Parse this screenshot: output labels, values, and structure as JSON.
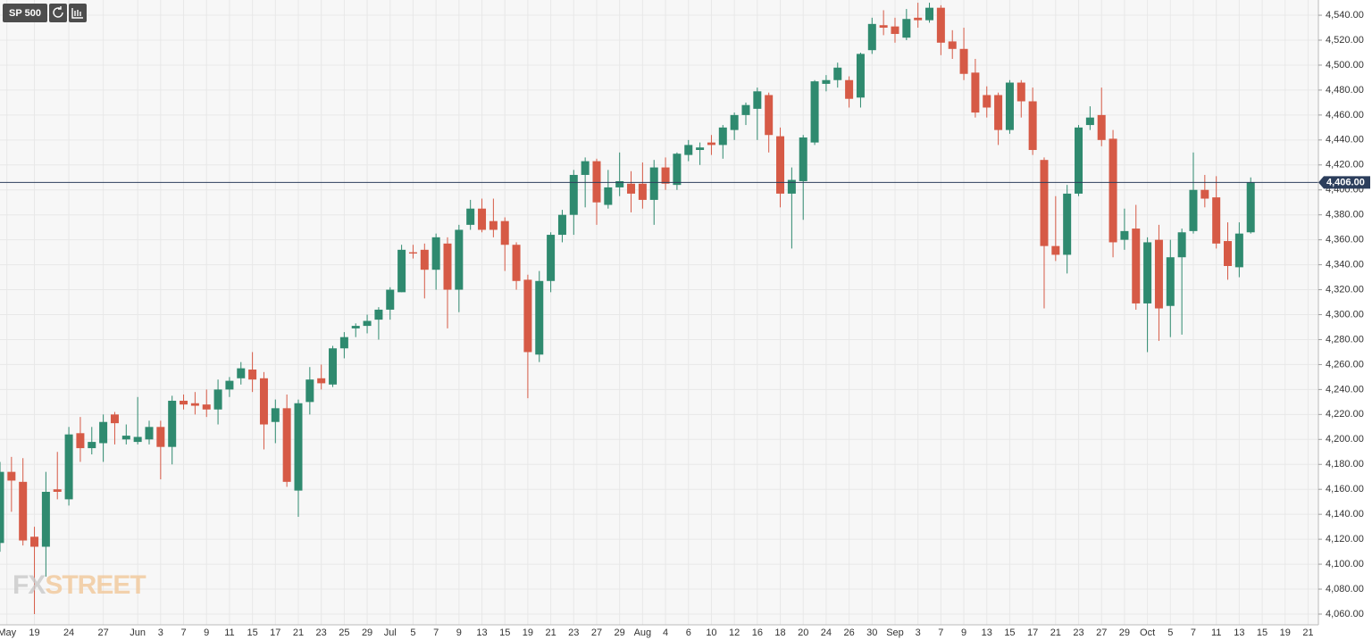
{
  "chart_data": {
    "type": "candlestick",
    "title": "SP 500",
    "watermark": [
      "FX",
      "STREET"
    ],
    "up_color": "#2f8a6f",
    "down_color": "#d65a46",
    "grid": true,
    "x": [
      0,
      1,
      2,
      3,
      4,
      5,
      6,
      7,
      8,
      9,
      10,
      11,
      12,
      13,
      14,
      15,
      16,
      17,
      18,
      19,
      20,
      21,
      22,
      23,
      24,
      25,
      26,
      27,
      28,
      29,
      30,
      31,
      32,
      33,
      34,
      35,
      36,
      37,
      38,
      39,
      40,
      41,
      42,
      43,
      44,
      45,
      46,
      47,
      48,
      49,
      50,
      51,
      52,
      53,
      54,
      55,
      56,
      57,
      58,
      59,
      60,
      61,
      62,
      63,
      64,
      65,
      66,
      67,
      68,
      69,
      70,
      71,
      72,
      73,
      74,
      75,
      76,
      77,
      78,
      79,
      80,
      81,
      82,
      83,
      84,
      85,
      86,
      87,
      88,
      89,
      90,
      91,
      92,
      93,
      94,
      95,
      96,
      97,
      98,
      99,
      100,
      101,
      102,
      103,
      104,
      105,
      106,
      107,
      108,
      109
    ],
    "open": [
      4117,
      4174,
      4166,
      4122,
      4114,
      4160,
      4152,
      4205,
      4193,
      4197,
      4220,
      4200,
      4198,
      4200,
      4210,
      4194,
      4231,
      4229,
      4228,
      4224,
      4240,
      4249,
      4256,
      4249,
      4214,
      4225,
      4159,
      4230,
      4249,
      4244,
      4273,
      4289,
      4291,
      4296,
      4304,
      4318,
      4350,
      4352,
      4336,
      4357,
      4320,
      4372,
      4385,
      4375,
      4375,
      4356,
      4328,
      4268,
      4327,
      4364,
      4380,
      4412,
      4423,
      4388,
      4402,
      4405,
      4405,
      4392,
      4418,
      4404,
      4428,
      4432,
      4438,
      4436,
      4448,
      4460,
      4465,
      4476,
      4443,
      4397,
      4407,
      4438,
      4485,
      4488,
      4488,
      4474,
      4512,
      4532,
      4531,
      4522,
      4538,
      4536,
      4546,
      4519,
      4513,
      4494,
      4476,
      4476,
      4448,
      4486,
      4471,
      4424,
      4355,
      4348,
      4397,
      4452,
      4460,
      4441,
      4360,
      4369,
      4309,
      4360,
      4307,
      4346,
      4367,
      4400,
      4394,
      4359,
      4338,
      4366
    ],
    "high": [
      4182,
      4186,
      4185,
      4130,
      4174,
      4190,
      4210,
      4218,
      4210,
      4220,
      4222,
      4212,
      4234,
      4215,
      4215,
      4235,
      4236,
      4238,
      4240,
      4248,
      4250,
      4262,
      4270,
      4254,
      4232,
      4236,
      4232,
      4258,
      4260,
      4275,
      4286,
      4293,
      4300,
      4306,
      4322,
      4356,
      4356,
      4357,
      4365,
      4362,
      4372,
      4392,
      4393,
      4393,
      4378,
      4358,
      4332,
      4335,
      4366,
      4384,
      4416,
      4426,
      4425,
      4416,
      4430,
      4415,
      4422,
      4424,
      4426,
      4430,
      4440,
      4438,
      4444,
      4452,
      4462,
      4470,
      4482,
      4478,
      4450,
      4418,
      4444,
      4488,
      4492,
      4502,
      4491,
      4510,
      4538,
      4544,
      4538,
      4545,
      4550,
      4550,
      4548,
      4528,
      4530,
      4505,
      4483,
      4478,
      4488,
      4488,
      4482,
      4426,
      4395,
      4404,
      4452,
      4467,
      4482,
      4448,
      4385,
      4388,
      4362,
      4372,
      4360,
      4369,
      4430,
      4412,
      4411,
      4374,
      4374,
      4410
    ],
    "low": [
      4110,
      4142,
      4115,
      4060,
      4090,
      4152,
      4147,
      4182,
      4188,
      4182,
      4196,
      4196,
      4196,
      4196,
      4168,
      4180,
      4224,
      4220,
      4218,
      4212,
      4234,
      4244,
      4238,
      4192,
      4197,
      4162,
      4138,
      4220,
      4240,
      4242,
      4265,
      4282,
      4285,
      4280,
      4296,
      4318,
      4345,
      4313,
      4320,
      4289,
      4302,
      4368,
      4366,
      4362,
      4335,
      4320,
      4233,
      4262,
      4318,
      4358,
      4364,
      4386,
      4372,
      4385,
      4395,
      4382,
      4385,
      4372,
      4400,
      4400,
      4423,
      4420,
      4428,
      4425,
      4440,
      4452,
      4440,
      4430,
      4386,
      4353,
      4376,
      4436,
      4479,
      4482,
      4466,
      4466,
      4509,
      4524,
      4518,
      4520,
      4530,
      4534,
      4508,
      4505,
      4488,
      4458,
      4458,
      4436,
      4445,
      4458,
      4428,
      4305,
      4343,
      4333,
      4395,
      4448,
      4435,
      4346,
      4352,
      4304,
      4270,
      4279,
      4282,
      4284,
      4365,
      4386,
      4353,
      4328,
      4330,
      4365
    ],
    "close": [
      4174,
      4167,
      4119,
      4114,
      4158,
      4158,
      4204,
      4193,
      4198,
      4214,
      4213,
      4203,
      4202,
      4210,
      4194,
      4231,
      4228,
      4227,
      4224,
      4240,
      4247,
      4257,
      4248,
      4212,
      4225,
      4166,
      4229,
      4248,
      4245,
      4273,
      4282,
      4291,
      4295,
      4304,
      4320,
      4352,
      4349,
      4336,
      4362,
      4320,
      4368,
      4385,
      4368,
      4368,
      4356,
      4327,
      4270,
      4327,
      4364,
      4380,
      4412,
      4423,
      4390,
      4402,
      4407,
      4397,
      4392,
      4418,
      4405,
      4429,
      4436,
      4434,
      4436,
      4450,
      4460,
      4468,
      4479,
      4444,
      4397,
      4408,
      4442,
      4487,
      4488,
      4498,
      4473,
      4509,
      4533,
      4530,
      4525,
      4537,
      4536,
      4546,
      4518,
      4513,
      4493,
      4462,
      4466,
      4448,
      4486,
      4471,
      4432,
      4355,
      4348,
      4397,
      4450,
      4458,
      4440,
      4358,
      4367,
      4309,
      4358,
      4305,
      4346,
      4366,
      4400,
      4393,
      4357,
      4339,
      4365,
      4406
    ],
    "xlim": [
      0,
      114.9
    ],
    "xticks": [
      {
        "value": 0.6,
        "label": "May"
      },
      {
        "value": 3,
        "label": "19"
      },
      {
        "value": 6,
        "label": "24"
      },
      {
        "value": 9,
        "label": "27"
      },
      {
        "value": 12,
        "label": "Jun"
      },
      {
        "value": 14,
        "label": "3"
      },
      {
        "value": 16,
        "label": "7"
      },
      {
        "value": 18,
        "label": "9"
      },
      {
        "value": 20,
        "label": "11"
      },
      {
        "value": 22,
        "label": "15"
      },
      {
        "value": 24,
        "label": "17"
      },
      {
        "value": 26,
        "label": "21"
      },
      {
        "value": 28,
        "label": "23"
      },
      {
        "value": 30,
        "label": "25"
      },
      {
        "value": 32,
        "label": "29"
      },
      {
        "value": 34,
        "label": "Jul"
      },
      {
        "value": 36,
        "label": "5"
      },
      {
        "value": 38,
        "label": "7"
      },
      {
        "value": 40,
        "label": "9"
      },
      {
        "value": 42,
        "label": "13"
      },
      {
        "value": 44,
        "label": "15"
      },
      {
        "value": 46,
        "label": "19"
      },
      {
        "value": 48,
        "label": "21"
      },
      {
        "value": 50,
        "label": "23"
      },
      {
        "value": 52,
        "label": "27"
      },
      {
        "value": 54,
        "label": "29"
      },
      {
        "value": 56,
        "label": "Aug"
      },
      {
        "value": 58,
        "label": "4"
      },
      {
        "value": 60,
        "label": "6"
      },
      {
        "value": 62,
        "label": "10"
      },
      {
        "value": 64,
        "label": "12"
      },
      {
        "value": 66,
        "label": "16"
      },
      {
        "value": 68,
        "label": "18"
      },
      {
        "value": 70,
        "label": "20"
      },
      {
        "value": 72,
        "label": "24"
      },
      {
        "value": 74,
        "label": "26"
      },
      {
        "value": 76,
        "label": "30"
      },
      {
        "value": 78,
        "label": "Sep"
      },
      {
        "value": 80,
        "label": "3"
      },
      {
        "value": 82,
        "label": "7"
      },
      {
        "value": 84,
        "label": "9"
      },
      {
        "value": 86,
        "label": "13"
      },
      {
        "value": 88,
        "label": "15"
      },
      {
        "value": 90,
        "label": "17"
      },
      {
        "value": 92,
        "label": "21"
      },
      {
        "value": 94,
        "label": "23"
      },
      {
        "value": 96,
        "label": "27"
      },
      {
        "value": 98,
        "label": "29"
      },
      {
        "value": 100,
        "label": "Oct"
      },
      {
        "value": 102,
        "label": "5"
      },
      {
        "value": 104,
        "label": "7"
      },
      {
        "value": 106,
        "label": "11"
      },
      {
        "value": 108,
        "label": "13"
      },
      {
        "value": 110,
        "label": "15"
      },
      {
        "value": 112,
        "label": "19"
      },
      {
        "value": 114,
        "label": "21"
      }
    ],
    "ylim": [
      4051.4,
      4552.2
    ],
    "yticks": [
      {
        "value": 4060,
        "label": "4,060.00"
      },
      {
        "value": 4080,
        "label": "4,080.00"
      },
      {
        "value": 4100,
        "label": "4,100.00"
      },
      {
        "value": 4120,
        "label": "4,120.00"
      },
      {
        "value": 4140,
        "label": "4,140.00"
      },
      {
        "value": 4160,
        "label": "4,160.00"
      },
      {
        "value": 4180,
        "label": "4,180.00"
      },
      {
        "value": 4200,
        "label": "4,200.00"
      },
      {
        "value": 4220,
        "label": "4,220.00"
      },
      {
        "value": 4240,
        "label": "4,240.00"
      },
      {
        "value": 4260,
        "label": "4,260.00"
      },
      {
        "value": 4280,
        "label": "4,280.00"
      },
      {
        "value": 4300,
        "label": "4,300.00"
      },
      {
        "value": 4320,
        "label": "4,320.00"
      },
      {
        "value": 4340,
        "label": "4,340.00"
      },
      {
        "value": 4360,
        "label": "4,360.00"
      },
      {
        "value": 4380,
        "label": "4,380.00"
      },
      {
        "value": 4400,
        "label": "4,400.00"
      },
      {
        "value": 4420,
        "label": "4,420.00"
      },
      {
        "value": 4440,
        "label": "4,440.00"
      },
      {
        "value": 4460,
        "label": "4,460.00"
      },
      {
        "value": 4480,
        "label": "4,480.00"
      },
      {
        "value": 4500,
        "label": "4,500.00"
      },
      {
        "value": 4520,
        "label": "4,520.00"
      },
      {
        "value": 4540,
        "label": "4,540.00"
      }
    ],
    "price_line": {
      "value": 4406,
      "label": "4,406.00",
      "color": "#2c3e5c"
    }
  }
}
